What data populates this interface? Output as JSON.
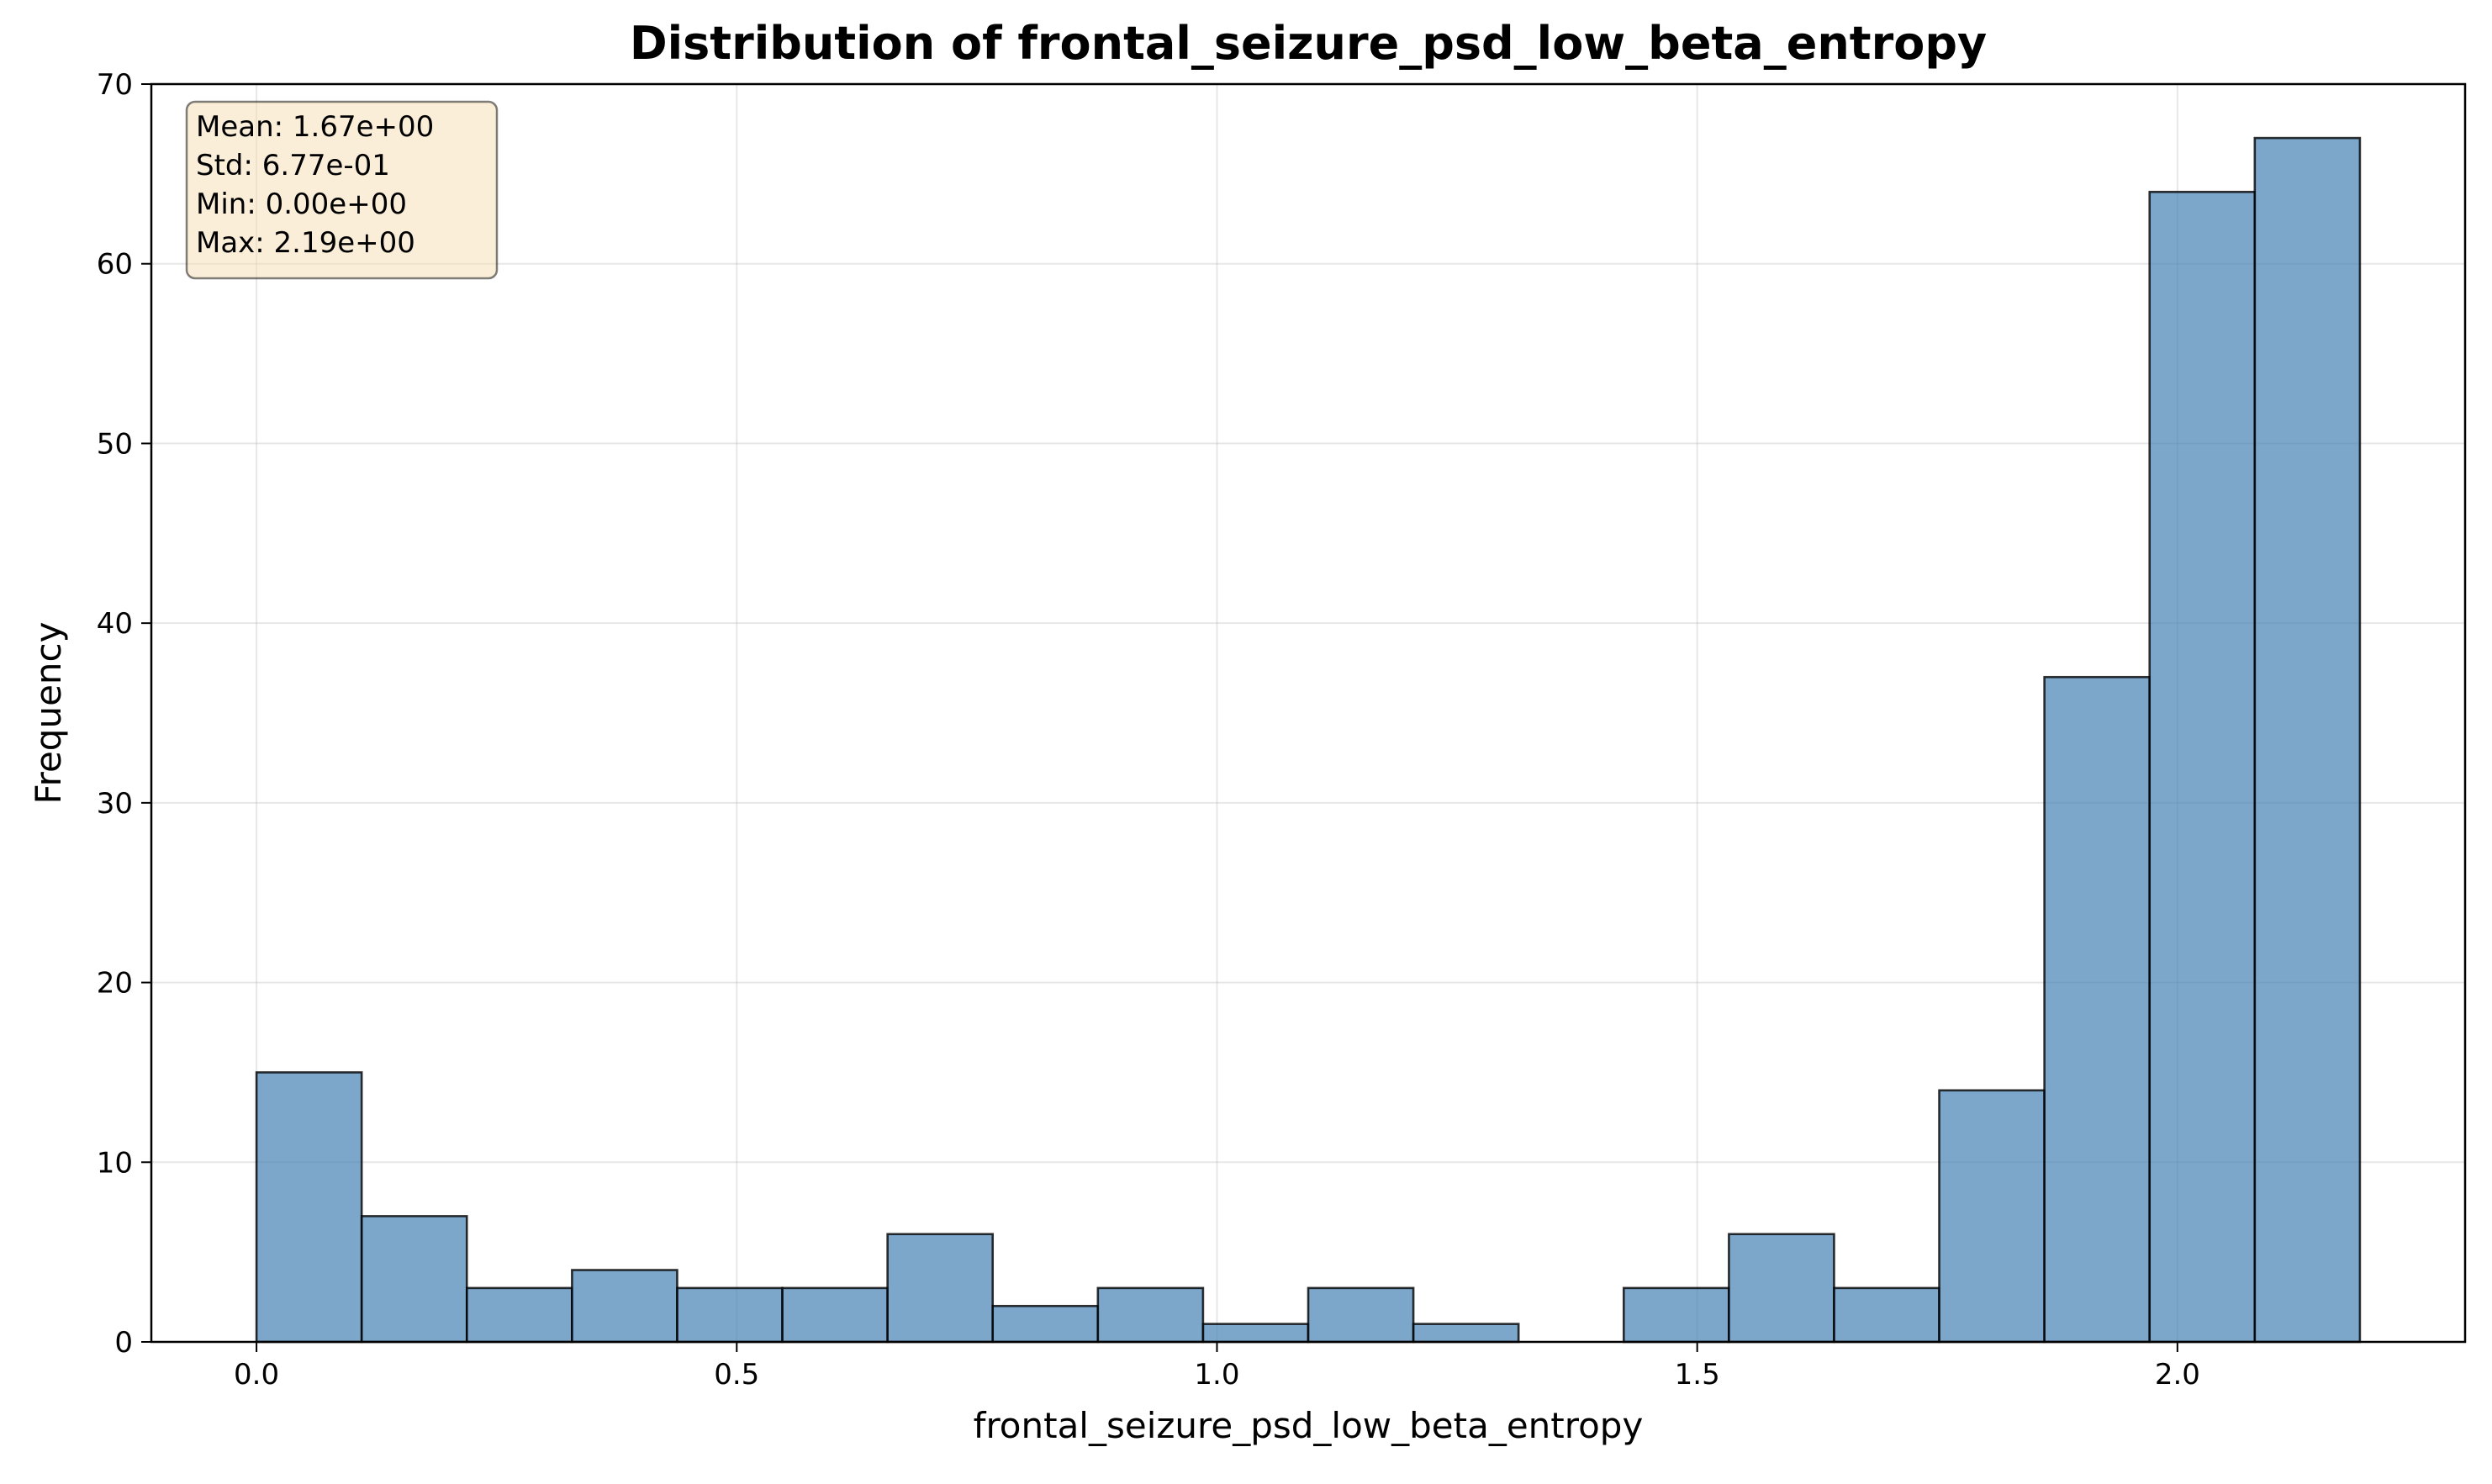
{
  "chart_data": {
    "type": "bar",
    "title": "Distribution of frontal_seizure_psd_low_beta_entropy",
    "xlabel": "frontal_seizure_psd_low_beta_entropy",
    "ylabel": "Frequency",
    "xlim": [
      -0.1095,
      2.2995
    ],
    "ylim": [
      0,
      70
    ],
    "xticks": [
      0.0,
      0.5,
      1.0,
      1.5,
      2.0
    ],
    "xtick_labels": [
      "0.0",
      "0.5",
      "1.0",
      "1.5",
      "2.0"
    ],
    "yticks": [
      0,
      10,
      20,
      30,
      40,
      50,
      60,
      70
    ],
    "ytick_labels": [
      "0",
      "10",
      "20",
      "30",
      "40",
      "50",
      "60",
      "70"
    ],
    "grid": true,
    "bin_start": 0.0,
    "bin_end": 2.19,
    "bin_count": 20,
    "values": [
      15,
      7,
      3,
      4,
      3,
      3,
      6,
      2,
      3,
      1,
      3,
      1,
      0,
      3,
      6,
      3,
      14,
      37,
      64,
      67
    ],
    "bar_color": "#4682b4",
    "edge_color": "#000000",
    "stats_box": {
      "lines": [
        "Mean: 1.67e+00",
        "Std: 6.77e-01",
        "Min: 0.00e+00",
        "Max: 2.19e+00"
      ],
      "placement": "top-left",
      "background": "#f5deb3"
    }
  }
}
